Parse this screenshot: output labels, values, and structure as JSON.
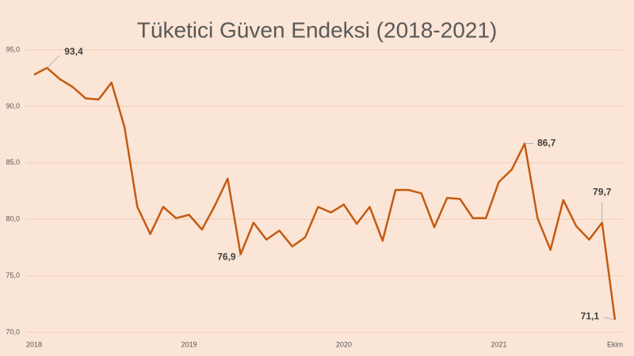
{
  "chart_data": {
    "type": "line",
    "title": "Tüketici Güven Endeksi (2018-2021)",
    "categories": [
      "2018",
      null,
      null,
      null,
      null,
      null,
      null,
      null,
      null,
      null,
      null,
      null,
      "2019",
      null,
      null,
      null,
      null,
      null,
      null,
      null,
      null,
      null,
      null,
      null,
      "2020",
      null,
      null,
      null,
      null,
      null,
      null,
      null,
      null,
      null,
      null,
      null,
      "2021",
      null,
      null,
      null,
      null,
      null,
      null,
      null,
      null,
      "Ekim"
    ],
    "values": [
      92.8,
      93.4,
      92.4,
      91.7,
      90.7,
      90.6,
      92.1,
      88.2,
      81.1,
      78.7,
      81.1,
      80.1,
      80.4,
      79.1,
      81.2,
      83.6,
      76.9,
      79.7,
      78.2,
      79.0,
      77.6,
      78.4,
      81.1,
      80.6,
      81.3,
      79.6,
      81.1,
      78.1,
      82.6,
      82.6,
      82.3,
      79.3,
      81.9,
      81.8,
      80.1,
      80.1,
      83.3,
      84.4,
      86.7,
      80.1,
      77.3,
      81.7,
      79.4,
      78.2,
      79.7,
      71.1
    ],
    "value_labels": [
      null,
      "93,4",
      null,
      null,
      null,
      null,
      null,
      null,
      null,
      null,
      null,
      null,
      null,
      null,
      null,
      null,
      "76,9",
      null,
      null,
      null,
      null,
      null,
      null,
      null,
      null,
      null,
      null,
      null,
      null,
      null,
      null,
      null,
      null,
      null,
      null,
      null,
      null,
      null,
      "86,7",
      null,
      null,
      null,
      null,
      null,
      "79,7",
      "71,1"
    ],
    "color": "#c55a11",
    "ylim": [
      70,
      95
    ],
    "yticks": [
      {
        "value": 70,
        "label": "70,0"
      },
      {
        "value": 75,
        "label": "75,0"
      },
      {
        "value": 80,
        "label": "80,0"
      },
      {
        "value": 85,
        "label": "85,0"
      },
      {
        "value": 90,
        "label": "90,0"
      },
      {
        "value": 95,
        "label": "95,0"
      }
    ],
    "grid": true
  }
}
